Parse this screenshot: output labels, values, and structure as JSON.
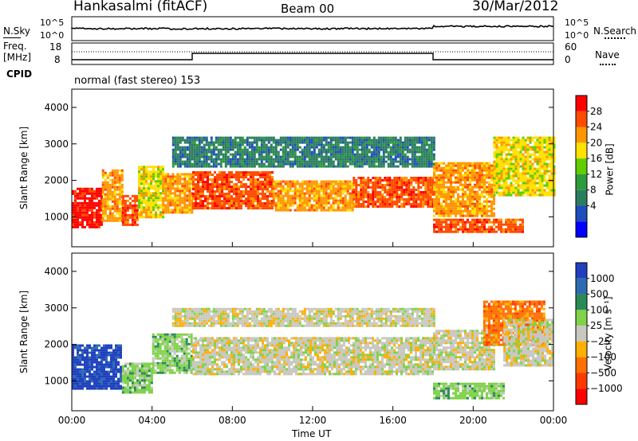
{
  "header": {
    "station": "Hankasalmi (fitACF)",
    "beam": "Beam 00",
    "date": "30/Mar/2012"
  },
  "strip": {
    "nsky_label": "N.Sky",
    "nsky_ticks": [
      "10^5",
      "10^0"
    ],
    "nsearch_label": "N.Search",
    "nsearch_ticks": [
      "10^5",
      "10^0"
    ],
    "freq_label_1": "Freq.",
    "freq_label_2": "[MHz]",
    "freq_ticks": [
      "18",
      "8"
    ],
    "nave_label": "Nave",
    "nave_ticks": [
      "60",
      "0"
    ],
    "cpid_label": "CPID",
    "mode_text": "normal (fast stereo) 153"
  },
  "power_panel": {
    "ylabel": "Slant Range [km]",
    "yticks": [
      "4000",
      "3000",
      "2000",
      "1000"
    ],
    "colorbar_label": "Power [dB]",
    "colorbar_ticks": [
      "28",
      "24",
      "20",
      "16",
      "12",
      "8",
      "4"
    ],
    "colors": [
      "#ff0000",
      "#ff4b00",
      "#ff9600",
      "#ffe100",
      "#5fcd00",
      "#2c9c3a",
      "#2b7d60",
      "#1e4dbe",
      "#0000ff"
    ]
  },
  "velocity_panel": {
    "ylabel": "Slant Range [km]",
    "yticks": [
      "4000",
      "3000",
      "2000",
      "1000"
    ],
    "colorbar_label": "Velocity [m s⁻¹]",
    "colorbar_ticks": [
      "1000",
      "500",
      "100",
      "25",
      "−25",
      "−100",
      "−500",
      "−1000"
    ],
    "colors": [
      "#1f3fbf",
      "#2c6bb0",
      "#2a8a55",
      "#7fd24a",
      "#c8c8c0",
      "#ffb000",
      "#ff7000",
      "#ff3a00",
      "#ff0000"
    ]
  },
  "xaxis": {
    "ticks": [
      "00:00",
      "04:00",
      "08:00",
      "12:00",
      "16:00",
      "20:00",
      "00:00"
    ],
    "label": "Time UT"
  },
  "chart_data": {
    "type": "heatmap",
    "x_range_hours": [
      0,
      24
    ],
    "y_range_km": [
      180,
      4500
    ],
    "panels": [
      {
        "name": "Power",
        "unit": "dB",
        "colorbar_range": [
          0,
          30
        ]
      },
      {
        "name": "Velocity",
        "unit": "m s^-1",
        "colorbar_range": [
          -1000,
          1000
        ]
      }
    ],
    "frequency_steps": [
      {
        "start_hour": 0.0,
        "end_hour": 6.0,
        "level": "low"
      },
      {
        "start_hour": 6.0,
        "end_hour": 18.0,
        "level": "high"
      },
      {
        "start_hour": 18.0,
        "end_hour": 24.0,
        "level": "low"
      }
    ],
    "power_bands": [
      {
        "x0": 0.0,
        "x1": 1.5,
        "y0": 750,
        "y1": 1800,
        "level": 0
      },
      {
        "x0": 1.5,
        "x1": 2.5,
        "y0": 900,
        "y1": 2300,
        "level": 2
      },
      {
        "x0": 2.5,
        "x1": 3.3,
        "y0": 750,
        "y1": 1600,
        "level": 1
      },
      {
        "x0": 3.3,
        "x1": 4.5,
        "y0": 1000,
        "y1": 2400,
        "level": 3
      },
      {
        "x0": 4.5,
        "x1": 6.0,
        "y0": 1100,
        "y1": 2200,
        "level": 2
      },
      {
        "x0": 6.0,
        "x1": 10.0,
        "y0": 1250,
        "y1": 2250,
        "level": 1
      },
      {
        "x0": 10.0,
        "x1": 14.0,
        "y0": 1200,
        "y1": 2000,
        "level": 2
      },
      {
        "x0": 14.0,
        "x1": 18.0,
        "y0": 1250,
        "y1": 2100,
        "level": 1
      },
      {
        "x0": 18.0,
        "x1": 21.0,
        "y0": 1050,
        "y1": 2500,
        "level": 2
      },
      {
        "x0": 21.0,
        "x1": 24.0,
        "y0": 1600,
        "y1": 3200,
        "level": 3
      },
      {
        "x0": 18.0,
        "x1": 22.5,
        "y0": 600,
        "y1": 950,
        "level": 1
      },
      {
        "x0": 5.0,
        "x1": 18.0,
        "y0": 2400,
        "y1": 3200,
        "level": 6
      }
    ],
    "velocity_bands": [
      {
        "x0": 0.0,
        "x1": 2.5,
        "y0": 800,
        "y1": 2000,
        "level": 0
      },
      {
        "x0": 2.5,
        "x1": 4.0,
        "y0": 700,
        "y1": 1500,
        "level": 3
      },
      {
        "x0": 4.0,
        "x1": 6.0,
        "y0": 1200,
        "y1": 2300,
        "level": 3
      },
      {
        "x0": 6.0,
        "x1": 18.0,
        "y0": 1200,
        "y1": 2200,
        "level": 4
      },
      {
        "x0": 5.0,
        "x1": 18.0,
        "y0": 2500,
        "y1": 3000,
        "level": 4
      },
      {
        "x0": 18.0,
        "x1": 21.0,
        "y0": 1300,
        "y1": 2400,
        "level": 4
      },
      {
        "x0": 20.5,
        "x1": 23.5,
        "y0": 2000,
        "y1": 3200,
        "level": 6
      },
      {
        "x0": 18.0,
        "x1": 21.5,
        "y0": 550,
        "y1": 950,
        "level": 3
      },
      {
        "x0": 21.5,
        "x1": 24.0,
        "y0": 1400,
        "y1": 2700,
        "level": 4
      }
    ]
  }
}
